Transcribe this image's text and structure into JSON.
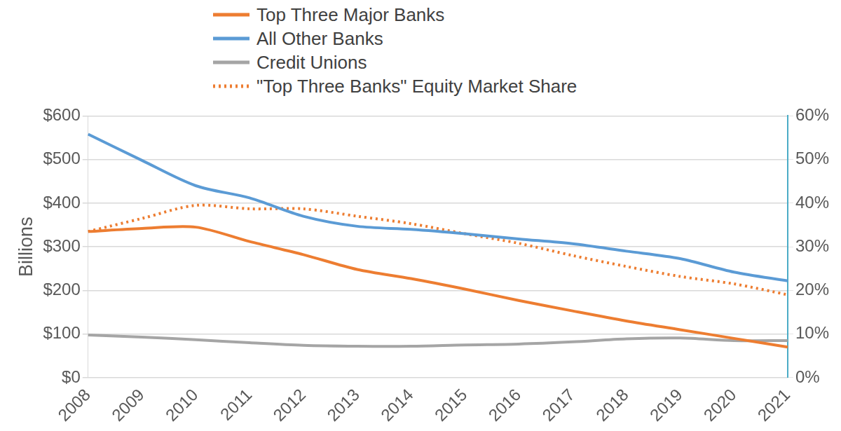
{
  "chart_data": {
    "type": "line",
    "categories": [
      "2008",
      "2009",
      "2010",
      "2011",
      "2012",
      "2013",
      "2014",
      "2015",
      "2016",
      "2017",
      "2018",
      "2019",
      "2020",
      "2021"
    ],
    "series": [
      {
        "name": "Top Three Major Banks",
        "color": "#ed7d31",
        "line_style": "solid",
        "values": [
          335,
          342,
          345,
          312,
          282,
          248,
          227,
          203,
          177,
          153,
          130,
          110,
          90,
          70
        ]
      },
      {
        "name": "All Other Banks",
        "color": "#5b9bd5",
        "line_style": "solid",
        "values": [
          558,
          498,
          440,
          412,
          370,
          347,
          340,
          330,
          318,
          307,
          290,
          273,
          242,
          222
        ]
      },
      {
        "name": "Credit Unions",
        "color": "#a5a5a5",
        "line_style": "solid",
        "values": [
          98,
          93,
          87,
          80,
          74,
          72,
          72,
          75,
          77,
          82,
          89,
          91,
          85,
          85
        ]
      },
      {
        "name": "\"Top Three  Banks\" Equity Market Share",
        "color": "#ed7d31",
        "line_style": "dotted",
        "axis": "y2",
        "values": [
          33.5,
          36.5,
          39.5,
          38.7,
          38.7,
          37,
          35.3,
          33,
          30.8,
          28,
          25.5,
          23.2,
          21.5,
          19
        ]
      }
    ],
    "y_label": "Billions",
    "ylim": [
      0,
      600
    ],
    "yticks": [
      {
        "value": 0,
        "label": "$0"
      },
      {
        "value": 100,
        "label": "$100"
      },
      {
        "value": 200,
        "label": "$200"
      },
      {
        "value": 300,
        "label": "$300"
      },
      {
        "value": 400,
        "label": "$400"
      },
      {
        "value": 500,
        "label": "$500"
      },
      {
        "value": 600,
        "label": "$600"
      }
    ],
    "y2lim": [
      0,
      60
    ],
    "y2ticks": [
      {
        "value": 0,
        "label": "0%"
      },
      {
        "value": 10,
        "label": "10%"
      },
      {
        "value": 20,
        "label": "20%"
      },
      {
        "value": 30,
        "label": "30%"
      },
      {
        "value": 40,
        "label": "40%"
      },
      {
        "value": 50,
        "label": "50%"
      },
      {
        "value": 60,
        "label": "60%"
      }
    ],
    "grid": true,
    "legend": "top"
  }
}
